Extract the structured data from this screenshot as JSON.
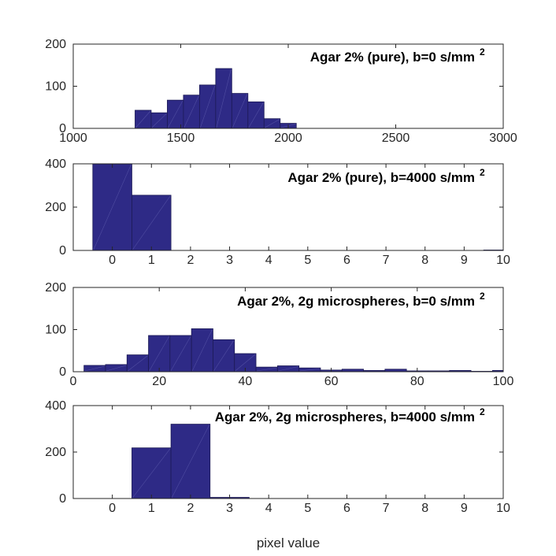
{
  "colors": {
    "bar_fill": "#2e2a86",
    "bar_edge": "#1c1a55",
    "bar_sheen": "#6c69b8",
    "axis": "#262626",
    "background": "#ffffff"
  },
  "figure": {
    "xlabel": "pixel value"
  },
  "chart_data": [
    {
      "type": "bar",
      "title": "Agar 2% (pure), b=0 s/mm",
      "title_superscript": "2",
      "xlabel": "",
      "ylabel": "",
      "xlim": [
        1000,
        3000
      ],
      "ylim": [
        0,
        200
      ],
      "xticks": [
        1000,
        1500,
        2000,
        2500,
        3000
      ],
      "yticks": [
        0,
        100,
        200
      ],
      "bin_width": 75,
      "bin_centers": [
        1325,
        1400,
        1475,
        1550,
        1625,
        1700,
        1775,
        1850,
        1925,
        2000
      ],
      "values": [
        43,
        37,
        67,
        79,
        103,
        142,
        83,
        63,
        23,
        12
      ]
    },
    {
      "type": "bar",
      "title": "Agar 2% (pure), b=4000 s/mm",
      "title_superscript": "2",
      "xlabel": "",
      "ylabel": "",
      "xlim": [
        -1,
        10
      ],
      "ylim": [
        0,
        400
      ],
      "xticks": [
        0,
        1,
        2,
        3,
        4,
        5,
        6,
        7,
        8,
        9,
        10
      ],
      "yticks": [
        0,
        200,
        400
      ],
      "bin_width": 1,
      "bin_centers": [
        0,
        1,
        2,
        3,
        4,
        5,
        6,
        7,
        8,
        9,
        10
      ],
      "values": [
        400,
        255,
        0,
        0,
        0,
        0,
        0,
        0,
        0,
        0,
        2
      ]
    },
    {
      "type": "bar",
      "title": "Agar 2%, 2g microspheres, b=0 s/mm",
      "title_superscript": "2",
      "xlabel": "",
      "ylabel": "",
      "xlim": [
        0,
        100
      ],
      "ylim": [
        0,
        200
      ],
      "xticks": [
        0,
        20,
        40,
        60,
        80,
        100
      ],
      "yticks": [
        0,
        100,
        200
      ],
      "bin_width": 5,
      "bin_centers": [
        5,
        10,
        15,
        20,
        25,
        30,
        35,
        40,
        45,
        50,
        55,
        60,
        65,
        70,
        75,
        80,
        85,
        90,
        95,
        100
      ],
      "values": [
        15,
        17,
        40,
        86,
        86,
        102,
        76,
        43,
        11,
        14,
        9,
        4,
        6,
        3,
        6,
        2,
        2,
        3,
        1,
        3
      ]
    },
    {
      "type": "bar",
      "title": "Agar 2%, 2g microspheres, b=4000 s/mm",
      "title_superscript": "2",
      "xlabel": "pixel value",
      "ylabel": "",
      "xlim": [
        -1,
        10
      ],
      "ylim": [
        0,
        400
      ],
      "xticks": [
        0,
        1,
        2,
        3,
        4,
        5,
        6,
        7,
        8,
        9,
        10
      ],
      "yticks": [
        0,
        200,
        400
      ],
      "bin_width": 1,
      "bin_centers": [
        0,
        1,
        2,
        3,
        4,
        5,
        6,
        7,
        8,
        9,
        10
      ],
      "values": [
        0,
        218,
        320,
        5,
        0,
        0,
        0,
        0,
        0,
        0,
        0
      ]
    }
  ]
}
